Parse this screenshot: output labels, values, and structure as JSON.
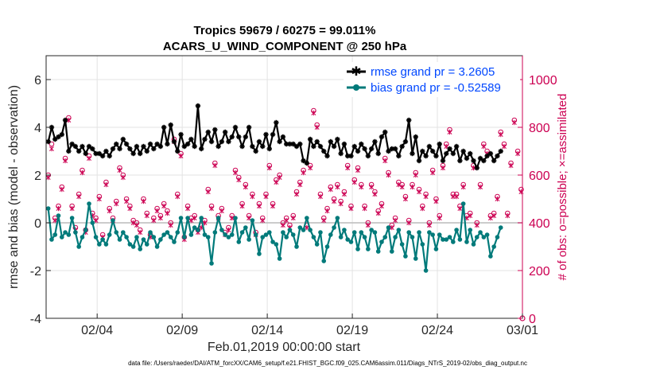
{
  "chart_data": {
    "type": "line",
    "title": "Tropics 59679 / 60275 = 99.011%",
    "subtitle": "ACARS_U_WIND_COMPONENT @ 250 hPa",
    "xlabel": "Feb.01,2019 00:00:00 start",
    "ylabel": "rmse and bias (model - observation)",
    "ylabel_right": "# of obs: o=possible; ×=assimilated",
    "xlim": [
      0,
      28
    ],
    "ylim": [
      -4,
      7
    ],
    "ylim_right": [
      0,
      1100
    ],
    "x_ticks": [
      {
        "value": 3,
        "label": "02/04"
      },
      {
        "value": 8,
        "label": "02/09"
      },
      {
        "value": 13,
        "label": "02/14"
      },
      {
        "value": 18,
        "label": "02/19"
      },
      {
        "value": 23,
        "label": "02/24"
      },
      {
        "value": 28,
        "label": "03/01"
      }
    ],
    "y_ticks": [
      -4,
      -2,
      0,
      2,
      4,
      6
    ],
    "y_ticks_right": [
      0,
      200,
      400,
      600,
      800,
      1000
    ],
    "grid": true,
    "legend_position": "top-right",
    "footer": "data file: /Users/raeder/DAI/ATM_forcXX/CAM6_setup/f.e21.FHIST_BGC.f09_025.CAM6assim.011/Diags_NTrS_2019-02/obs_diag_output.nc",
    "series": [
      {
        "name": "rmse grand pr = 3.2605",
        "color": "#000000",
        "marker": "star",
        "axis": "left",
        "values": [
          3.4,
          4.0,
          3.5,
          3.6,
          3.7,
          4.3,
          3.0,
          3.3,
          3.2,
          3.0,
          3.2,
          2.9,
          3.2,
          3.1,
          2.9,
          2.9,
          2.8,
          3.0,
          2.8,
          3.1,
          3.3,
          3.1,
          3.5,
          3.3,
          3.1,
          2.9,
          3.2,
          2.9,
          3.2,
          3.0,
          3.3,
          3.1,
          3.3,
          3.2,
          4.0,
          3.3,
          4.1,
          3.4,
          3.0,
          3.7,
          3.2,
          3.3,
          3.5,
          3.2,
          4.9,
          3.1,
          3.5,
          3.8,
          3.4,
          3.9,
          3.2,
          3.4,
          3.8,
          3.4,
          3.6,
          4.0,
          3.6,
          3.2,
          3.6,
          4.0,
          3.2,
          3.0,
          3.4,
          3.2,
          3.7,
          3.1,
          3.7,
          4.2,
          3.4,
          3.6,
          3.3,
          3.3,
          3.3,
          3.2,
          3.3,
          2.6,
          2.5,
          3.5,
          3.2,
          3.4,
          3.2,
          3.0,
          2.8,
          3.4,
          3.2,
          3.5,
          2.9,
          3.3,
          2.8,
          2.8,
          3.2,
          3.0,
          3.3,
          3.1,
          2.8,
          3.1,
          3.4,
          2.9,
          3.6,
          3.8,
          3.0,
          3.1,
          3.1,
          2.8,
          3.2,
          3.4,
          4.3,
          2.9,
          3.6,
          2.6,
          3.0,
          2.8,
          3.2,
          3.0,
          2.8,
          3.3,
          2.6,
          2.9,
          3.1,
          2.9,
          3.2,
          2.6,
          3.0,
          2.7,
          2.9,
          2.6,
          2.3,
          2.7,
          2.6,
          2.8,
          2.9,
          2.6,
          2.8,
          3.0
        ],
        "x_start": 0.125,
        "x_step": 0.2
      },
      {
        "name": "bias grand pr = -0.52589",
        "color": "#007a7a",
        "marker": "circle",
        "axis": "left",
        "values": [
          0.6,
          -0.7,
          -0.5,
          0.3,
          -0.6,
          -0.4,
          -0.5,
          0.2,
          -0.4,
          -1.0,
          -0.6,
          -0.3,
          0.8,
          0.0,
          -0.6,
          -0.9,
          -0.7,
          -0.9,
          -0.5,
          0.1,
          -0.4,
          -0.7,
          -0.4,
          -0.6,
          -0.9,
          -1.0,
          -0.6,
          -1.1,
          -0.7,
          -0.9,
          -0.4,
          -0.6,
          -1.0,
          -0.7,
          -0.5,
          -0.4,
          -0.6,
          -0.8,
          -0.4,
          0.2,
          -0.6,
          0.2,
          -0.5,
          -0.2,
          -0.3,
          0.2,
          -0.5,
          -0.6,
          -1.7,
          -0.4,
          0.2,
          -0.3,
          -0.5,
          -0.6,
          -0.5,
          0.2,
          -0.8,
          -0.4,
          -0.2,
          -0.7,
          0.1,
          -0.5,
          -1.3,
          -0.6,
          -0.5,
          -0.4,
          -0.8,
          -0.9,
          -1.5,
          -0.4,
          -0.6,
          -0.3,
          -0.5,
          -1.0,
          -0.2,
          -0.3,
          0.2,
          -0.3,
          -0.6,
          -0.9,
          -0.4,
          -1.6,
          -1.0,
          -0.5,
          -0.2,
          0.2,
          -0.6,
          -0.3,
          -0.7,
          -0.8,
          -0.4,
          -1.1,
          -0.4,
          -0.6,
          -1.1,
          -0.3,
          -0.4,
          -1.2,
          -0.8,
          -0.6,
          -0.2,
          -1.2,
          -0.6,
          -0.3,
          -0.9,
          -1.4,
          -0.4,
          -0.6,
          -1.5,
          -0.4,
          -0.9,
          -2.0,
          -0.4,
          -0.5,
          -1.1,
          -0.5,
          -0.7,
          -0.7,
          -0.6,
          -0.8,
          -0.3,
          -0.7,
          0.8,
          -0.8,
          -0.3,
          -0.9,
          -0.6,
          -0.4,
          -0.6,
          -0.5,
          -1.4,
          -1.0,
          -0.6,
          -0.2
        ],
        "x_start": 0.125,
        "x_step": 0.2
      },
      {
        "name": "possible obs",
        "color": "#cc0052",
        "marker": "o",
        "axis": "right",
        "values": [
          600,
          730,
          420,
          470,
          550,
          670,
          840,
          470,
          380,
          520,
          620,
          370,
          680,
          440,
          420,
          510,
          350,
          570,
          460,
          420,
          490,
          630,
          600,
          500,
          470,
          410,
          400,
          370,
          500,
          440,
          350,
          420,
          460,
          430,
          480,
          450,
          400,
          750,
          520,
          690,
          340,
          470,
          420,
          430,
          370,
          390,
          410,
          540,
          470,
          650,
          430,
          460,
          360,
          380,
          430,
          620,
          590,
          480,
          560,
          430,
          520,
          360,
          480,
          420,
          520,
          640,
          480,
          580,
          600,
          400,
          420,
          390,
          430,
          530,
          570,
          620,
          390,
          640,
          870,
          810,
          520,
          420,
          460,
          550,
          500,
          560,
          490,
          530,
          640,
          470,
          580,
          630,
          560,
          470,
          400,
          560,
          530,
          450,
          480,
          670,
          610,
          390,
          420,
          570,
          560,
          510,
          410,
          560,
          610,
          540,
          470,
          520,
          400,
          620,
          500,
          430,
          640,
          730,
          790,
          520,
          520,
          470,
          560,
          430,
          440,
          640,
          400,
          560,
          730,
          700,
          430,
          440,
          510,
          780,
          730,
          440,
          650,
          830,
          700,
          540
        ],
        "x_start": 0.125,
        "x_step": 0.2
      },
      {
        "name": "assimilated obs",
        "color": "#cc0052",
        "marker": "x",
        "axis": "right",
        "values": [
          590,
          710,
          410,
          460,
          540,
          660,
          830,
          460,
          370,
          510,
          610,
          360,
          670,
          430,
          410,
          500,
          340,
          560,
          450,
          410,
          480,
          620,
          590,
          490,
          460,
          400,
          390,
          360,
          490,
          430,
          340,
          410,
          450,
          420,
          470,
          440,
          390,
          740,
          510,
          680,
          330,
          460,
          410,
          420,
          360,
          380,
          400,
          530,
          460,
          640,
          420,
          450,
          350,
          370,
          420,
          610,
          580,
          470,
          550,
          420,
          510,
          350,
          470,
          410,
          510,
          630,
          470,
          570,
          590,
          390,
          410,
          380,
          420,
          520,
          560,
          610,
          380,
          630,
          860,
          800,
          510,
          410,
          450,
          540,
          490,
          550,
          480,
          520,
          630,
          460,
          570,
          620,
          550,
          460,
          390,
          550,
          520,
          440,
          470,
          660,
          600,
          380,
          410,
          560,
          550,
          500,
          400,
          550,
          600,
          530,
          460,
          510,
          390,
          610,
          490,
          420,
          630,
          720,
          780,
          510,
          510,
          460,
          550,
          420,
          430,
          630,
          390,
          550,
          720,
          690,
          420,
          430,
          500,
          770,
          720,
          430,
          640,
          820,
          690,
          530
        ],
        "x_start": 0.125,
        "x_step": 0.2
      }
    ]
  }
}
